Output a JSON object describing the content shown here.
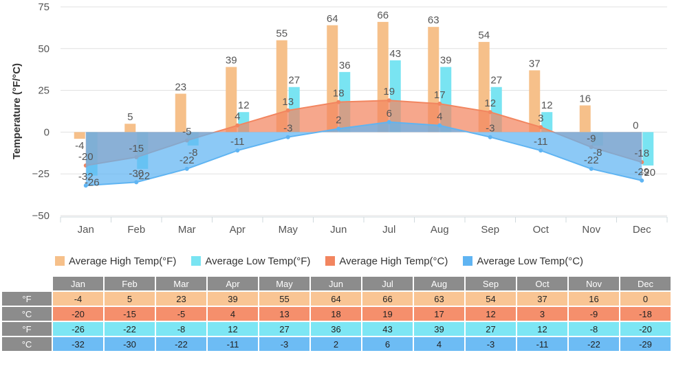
{
  "chart_data": {
    "type": "bar",
    "ylabel": "Temperature (°F/°C)",
    "ylim": [
      -50,
      75
    ],
    "yticks": [
      75,
      50,
      25,
      0,
      -25,
      -50
    ],
    "categories": [
      "Jan",
      "Feb",
      "Mar",
      "Apr",
      "May",
      "Jun",
      "Jul",
      "Aug",
      "Sep",
      "Oct",
      "Nov",
      "Dec"
    ],
    "grid": true,
    "legend_placement": "bottom",
    "series": [
      {
        "name": "Average High Temp(°F)",
        "type": "bar",
        "color": "#f6c08a",
        "values": [
          -4,
          5,
          23,
          39,
          55,
          64,
          66,
          63,
          54,
          37,
          16,
          0
        ]
      },
      {
        "name": "Average Low Temp(°F)",
        "type": "bar",
        "color": "#79e4f2",
        "values": [
          -26,
          -22,
          -8,
          12,
          27,
          36,
          43,
          39,
          27,
          12,
          -8,
          -20
        ]
      },
      {
        "name": "Average High Temp(°C)",
        "type": "area",
        "color": "#f2855f",
        "values": [
          -20,
          -15,
          -5,
          4,
          13,
          18,
          19,
          17,
          12,
          3,
          -9,
          -18
        ]
      },
      {
        "name": "Average Low Temp(°C)",
        "type": "area",
        "color": "#5fb4f2",
        "values": [
          -32,
          -30,
          -22,
          -11,
          -3,
          2,
          6,
          4,
          -3,
          -11,
          -22,
          -29
        ]
      }
    ]
  },
  "table": {
    "months": [
      "Jan",
      "Feb",
      "Mar",
      "Apr",
      "May",
      "Jun",
      "Jul",
      "Aug",
      "Sep",
      "Oct",
      "Nov",
      "Dec"
    ],
    "rows": [
      {
        "unit": "°F",
        "color": "#f9c594",
        "values": [
          "-4",
          "5",
          "23",
          "39",
          "55",
          "64",
          "66",
          "63",
          "54",
          "37",
          "16",
          "0"
        ]
      },
      {
        "unit": "°C",
        "color": "#f58f6c",
        "values": [
          "-20",
          "-15",
          "-5",
          "4",
          "13",
          "18",
          "19",
          "17",
          "12",
          "3",
          "-9",
          "-18"
        ]
      },
      {
        "unit": "°F",
        "color": "#7de6f4",
        "values": [
          "-26",
          "-22",
          "-8",
          "12",
          "27",
          "36",
          "43",
          "39",
          "27",
          "12",
          "-8",
          "-20"
        ]
      },
      {
        "unit": "°C",
        "color": "#6dbcf4",
        "values": [
          "-32",
          "-30",
          "-22",
          "-11",
          "-3",
          "2",
          "6",
          "4",
          "-3",
          "-11",
          "-22",
          "-29"
        ]
      }
    ]
  }
}
